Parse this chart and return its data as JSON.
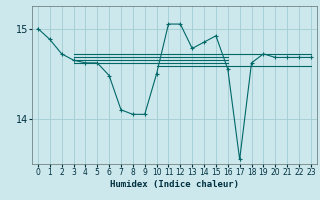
{
  "xlabel": "Humidex (Indice chaleur)",
  "bg_color": "#cce8ec",
  "grid_color": "#a0ccd4",
  "line_color": "#006868",
  "xlim": [
    -0.5,
    23.5
  ],
  "ylim": [
    13.5,
    15.25
  ],
  "yticks": [
    14,
    15
  ],
  "xticks": [
    0,
    1,
    2,
    3,
    4,
    5,
    6,
    7,
    8,
    9,
    10,
    11,
    12,
    13,
    14,
    15,
    16,
    17,
    18,
    19,
    20,
    21,
    22,
    23
  ],
  "main_series": {
    "x": [
      0,
      1,
      2,
      3,
      4,
      5,
      6,
      7,
      8,
      9,
      10,
      11,
      12,
      13,
      14,
      15,
      16,
      17,
      18,
      19,
      20,
      21,
      22,
      23
    ],
    "y": [
      15.0,
      14.88,
      14.72,
      14.65,
      14.62,
      14.62,
      14.48,
      14.1,
      14.05,
      14.05,
      14.5,
      15.05,
      15.05,
      14.78,
      14.85,
      14.92,
      14.55,
      13.55,
      14.62,
      14.72,
      14.68,
      14.68,
      14.68,
      14.68
    ]
  },
  "flat_lines": [
    {
      "x": [
        3,
        23
      ],
      "y": 14.72
    },
    {
      "x": [
        3,
        16
      ],
      "y": 14.68
    },
    {
      "x": [
        3,
        16
      ],
      "y": 14.65
    },
    {
      "x": [
        3,
        16
      ],
      "y": 14.62
    },
    {
      "x": [
        10,
        16
      ],
      "y": 14.58
    },
    {
      "x": [
        16,
        23
      ],
      "y": 14.58
    }
  ]
}
